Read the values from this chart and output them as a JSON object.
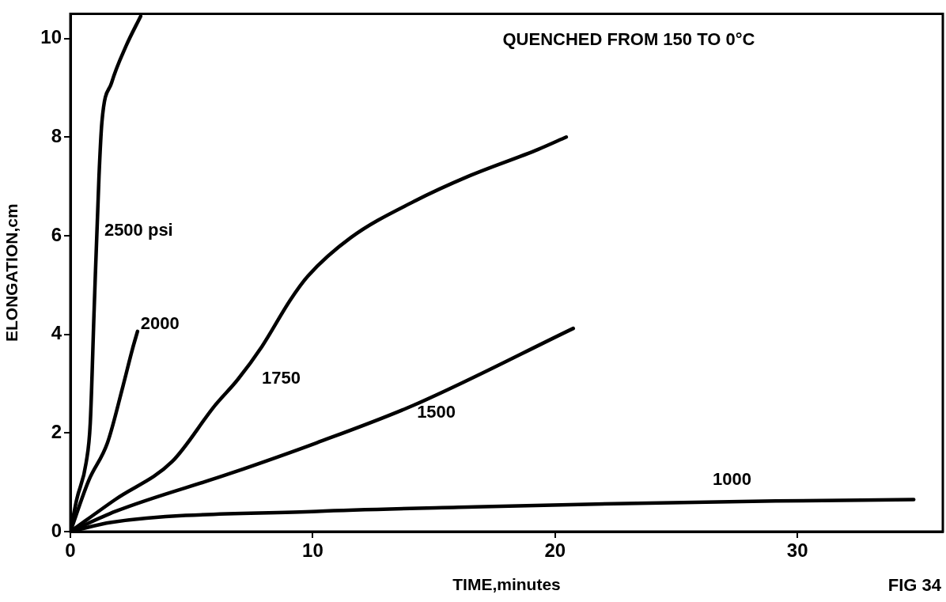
{
  "chart_data": {
    "type": "line",
    "title": "QUENCHED FROM 150 TO 0°C",
    "xlabel": "TIME,minutes",
    "ylabel": "ELONGATION,cm",
    "annotations": [
      "FIG 34"
    ],
    "xlim": [
      0,
      36
    ],
    "xticks": [
      0,
      10,
      20,
      30
    ],
    "ylim": [
      0,
      10.5
    ],
    "yticks": [
      0,
      2,
      4,
      6,
      8,
      10
    ],
    "grid": false,
    "legend": false,
    "series": [
      {
        "name": "2500 psi",
        "color": "#000000",
        "x": [
          0,
          0.26,
          0.65,
          0.82,
          0.98,
          1.18,
          1.3,
          1.7,
          2.3,
          2.9
        ],
        "values": [
          0,
          0.65,
          1.4,
          2.2,
          4.5,
          7.2,
          8.3,
          9.1,
          9.85,
          10.45
        ]
      },
      {
        "name": "2000",
        "color": "#000000",
        "x": [
          0,
          0.75,
          1.53,
          2.17,
          2.56,
          2.77
        ],
        "values": [
          0,
          1.03,
          1.8,
          2.95,
          3.7,
          4.06
        ]
      },
      {
        "name": "1750",
        "color": "#000000",
        "x": [
          0,
          1.85,
          4.2,
          5.97,
          6.9,
          7.9,
          9.08,
          9.8,
          11.57,
          14.2,
          16.4,
          19.3,
          20.46
        ],
        "values": [
          0,
          0.65,
          1.42,
          2.56,
          3.08,
          3.75,
          4.7,
          5.18,
          5.96,
          6.7,
          7.2,
          7.75,
          8.0
        ]
      },
      {
        "name": "1500",
        "color": "#000000",
        "x": [
          0,
          1.86,
          6.6,
          10.16,
          14.2,
          20.75
        ],
        "values": [
          0,
          0.41,
          1.18,
          1.8,
          2.57,
          4.12
        ]
      },
      {
        "name": "1000",
        "color": "#000000",
        "x": [
          0,
          1.7,
          10.16,
          16.7,
          22.9,
          29.1,
          34.8
        ],
        "values": [
          0,
          0.19,
          0.41,
          0.5,
          0.57,
          0.62,
          0.65
        ]
      }
    ]
  }
}
